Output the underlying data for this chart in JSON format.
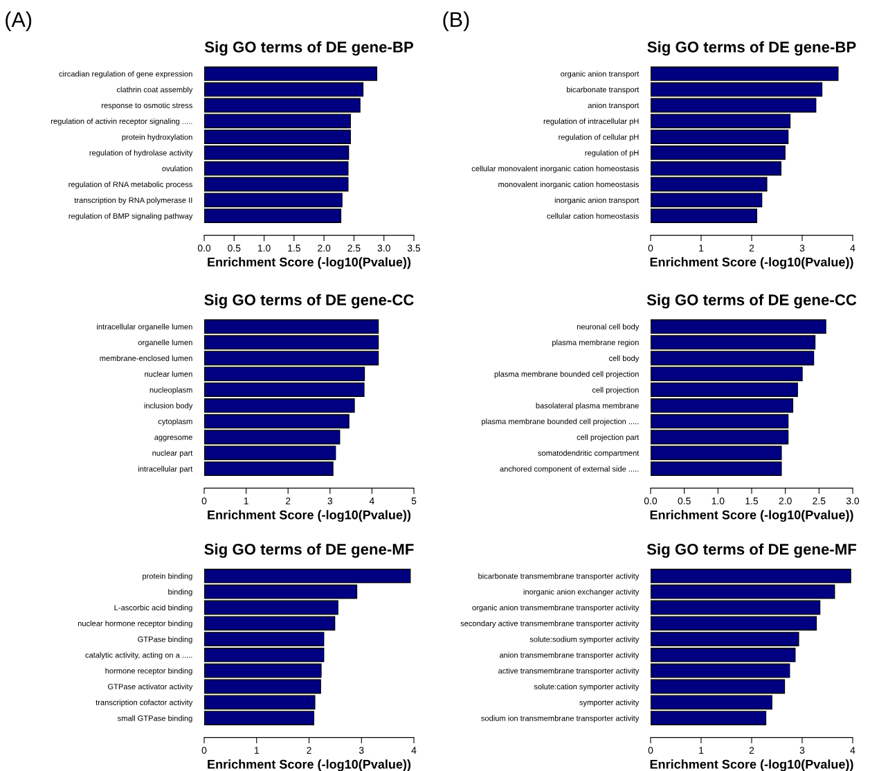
{
  "chart_data": [
    {
      "type": "bar",
      "orientation": "horizontal",
      "title": "Sig GO terms of DE gene-BP",
      "xlabel": "Enrichment Score (-log10(Pvalue))",
      "annotations": [
        "(A)"
      ],
      "color": "#000080",
      "categories": [
        "circadian regulation of gene expression",
        "clathrin coat assembly",
        "response to osmotic stress",
        "regulation of activin receptor signaling .....",
        "protein hydroxylation",
        "regulation of hydrolase activity",
        "ovulation",
        "regulation of RNA metabolic process",
        "transcription by RNA polymerase II",
        "regulation of BMP signaling pathway"
      ],
      "values": [
        2.88,
        2.65,
        2.6,
        2.44,
        2.44,
        2.41,
        2.4,
        2.4,
        2.3,
        2.28
      ],
      "xlim": [
        0,
        3.5
      ],
      "xticks": [
        {
          "value": 0,
          "label": "0.0"
        },
        0.5,
        {
          "value": 1,
          "label": "1.0"
        },
        1.5,
        {
          "value": 2,
          "label": "2.0"
        },
        2.5,
        {
          "value": 3,
          "label": "3.0"
        },
        3.5
      ]
    },
    {
      "type": "bar",
      "orientation": "horizontal",
      "title": "Sig GO terms of DE gene-BP",
      "xlabel": "Enrichment Score (-log10(Pvalue))",
      "annotations": [
        "(B)"
      ],
      "color": "#000080",
      "categories": [
        "organic anion transport",
        "bicarbonate transport",
        "anion transport",
        "regulation of intracellular pH",
        "regulation of cellular pH",
        "regulation of pH",
        "cellular monovalent inorganic cation homeostasis",
        "monovalent inorganic cation homeostasis",
        "inorganic anion transport",
        "cellular cation homeostasis"
      ],
      "values": [
        3.71,
        3.39,
        3.27,
        2.76,
        2.72,
        2.66,
        2.58,
        2.3,
        2.2,
        2.1
      ],
      "xlim": [
        0,
        4
      ],
      "xticks": [
        0,
        1,
        2,
        3,
        4
      ]
    },
    {
      "type": "bar",
      "orientation": "horizontal",
      "title": "Sig GO terms of DE gene-CC",
      "xlabel": "Enrichment Score (-log10(Pvalue))",
      "color": "#000080",
      "categories": [
        "intracellular organelle lumen",
        "organelle lumen",
        "membrane-enclosed lumen",
        "nuclear lumen",
        "nucleoplasm",
        "inclusion body",
        "cytoplasm",
        "aggresome",
        "nuclear part",
        "intracellular part"
      ],
      "values": [
        4.15,
        4.15,
        4.15,
        3.82,
        3.81,
        3.58,
        3.45,
        3.23,
        3.13,
        3.07
      ],
      "xlim": [
        0,
        5
      ],
      "xticks": [
        0,
        1,
        2,
        3,
        4,
        5
      ]
    },
    {
      "type": "bar",
      "orientation": "horizontal",
      "title": "Sig GO terms of DE gene-CC",
      "xlabel": "Enrichment Score (-log10(Pvalue))",
      "color": "#000080",
      "categories": [
        "neuronal cell body",
        "plasma membrane region",
        "cell body",
        "plasma membrane bounded cell projection",
        "cell projection",
        "basolateral plasma membrane",
        "plasma membrane bounded cell projection .....",
        "cell projection part",
        "somatodendritic compartment",
        "anchored component of external side ....."
      ],
      "values": [
        2.6,
        2.44,
        2.42,
        2.25,
        2.18,
        2.11,
        2.04,
        2.04,
        1.94,
        1.94
      ],
      "xlim": [
        0,
        3
      ],
      "xticks": [
        {
          "value": 0,
          "label": "0.0"
        },
        0.5,
        {
          "value": 1,
          "label": "1.0"
        },
        1.5,
        {
          "value": 2,
          "label": "2.0"
        },
        2.5,
        {
          "value": 3,
          "label": "3.0"
        }
      ]
    },
    {
      "type": "bar",
      "orientation": "horizontal",
      "title": "Sig GO terms of DE gene-MF",
      "xlabel": "Enrichment Score (-log10(Pvalue))",
      "color": "#000080",
      "categories": [
        "protein binding",
        "binding",
        "L-ascorbic acid binding",
        "nuclear hormone receptor binding",
        "GTPase binding",
        "catalytic activity, acting on a .....",
        "hormone receptor binding",
        "GTPase activator activity",
        "transcription cofactor activity",
        "small GTPase binding"
      ],
      "values": [
        3.93,
        2.91,
        2.55,
        2.49,
        2.28,
        2.28,
        2.23,
        2.22,
        2.11,
        2.09
      ],
      "xlim": [
        0,
        4
      ],
      "xticks": [
        0,
        1,
        2,
        3,
        4
      ]
    },
    {
      "type": "bar",
      "orientation": "horizontal",
      "title": "Sig GO terms of DE gene-MF",
      "xlabel": "Enrichment Score (-log10(Pvalue))",
      "color": "#000080",
      "categories": [
        "bicarbonate transmembrane transporter activity",
        "inorganic anion exchanger activity",
        "organic anion transmembrane transporter activity",
        "secondary active transmembrane transporter activity",
        "solute:sodium symporter activity",
        "anion transmembrane transporter activity",
        "active transmembrane transporter activity",
        "solute:cation symporter activity",
        "symporter activity",
        "sodium ion transmembrane transporter activity"
      ],
      "values": [
        3.96,
        3.64,
        3.35,
        3.28,
        2.93,
        2.86,
        2.75,
        2.65,
        2.4,
        2.28
      ],
      "xlim": [
        0,
        4
      ],
      "xticks": [
        0,
        1,
        2,
        3,
        4
      ]
    }
  ]
}
